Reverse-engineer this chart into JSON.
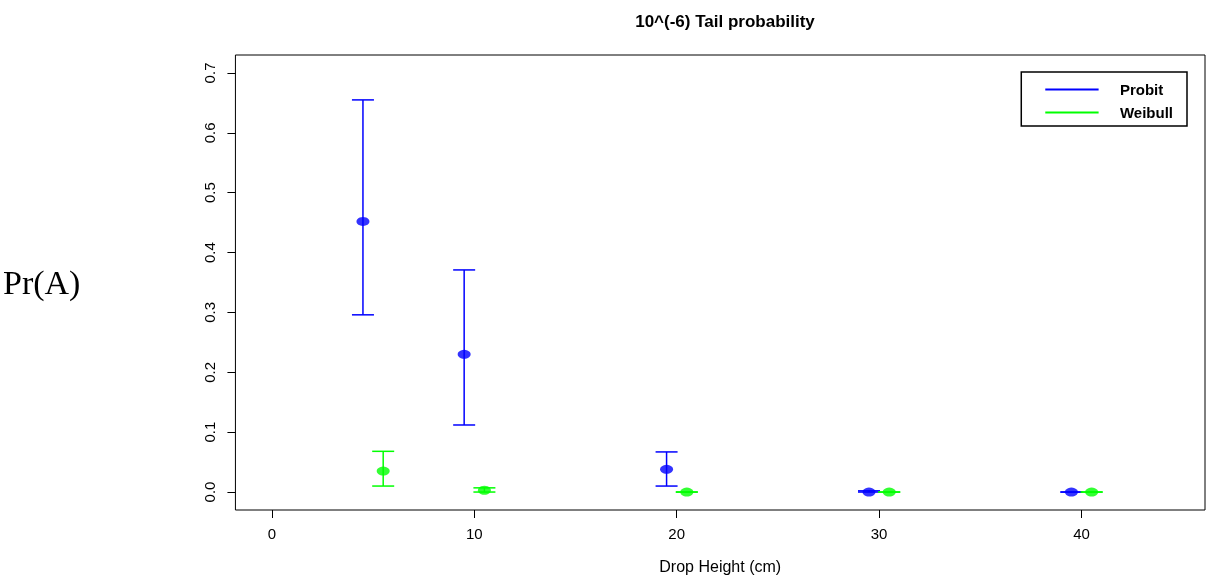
{
  "chart_data": {
    "type": "scatter",
    "title": "10^(-6) Tail probability",
    "xlabel": "Drop Height (cm)",
    "ylabel": "Pr(A)",
    "xlim": [
      -1.8,
      46.1
    ],
    "xticks": [
      0,
      10,
      20,
      30,
      40
    ],
    "ylim": [
      -0.03,
      0.73
    ],
    "yticks": [
      {
        "value": 0,
        "label": "0.0"
      },
      0.1,
      0.2,
      0.3,
      0.4,
      0.5,
      0.6,
      0.7
    ],
    "marker": "circle",
    "grid": false,
    "legend": "top right",
    "series": [
      {
        "name": "Probit",
        "color": "#0000ff",
        "x": [
          4.5,
          9.5,
          19.5,
          29.5,
          39.5
        ],
        "values": [
          0.452,
          0.23,
          0.038,
          0,
          0
        ],
        "errors": [
          [
            0.296,
            0.655
          ],
          [
            0.112,
            0.371
          ],
          [
            0.01,
            0.067
          ],
          [
            0,
            0.002
          ],
          0
        ]
      },
      {
        "name": "Weibull",
        "color": "#00ff00",
        "x": [
          5.5,
          10.5,
          20.5,
          30.5,
          40.5
        ],
        "values": [
          0.035,
          0.003,
          0,
          0,
          0
        ],
        "errors": [
          [
            0.01,
            0.068
          ],
          [
            0,
            0.007
          ],
          0,
          0,
          0
        ]
      }
    ]
  }
}
